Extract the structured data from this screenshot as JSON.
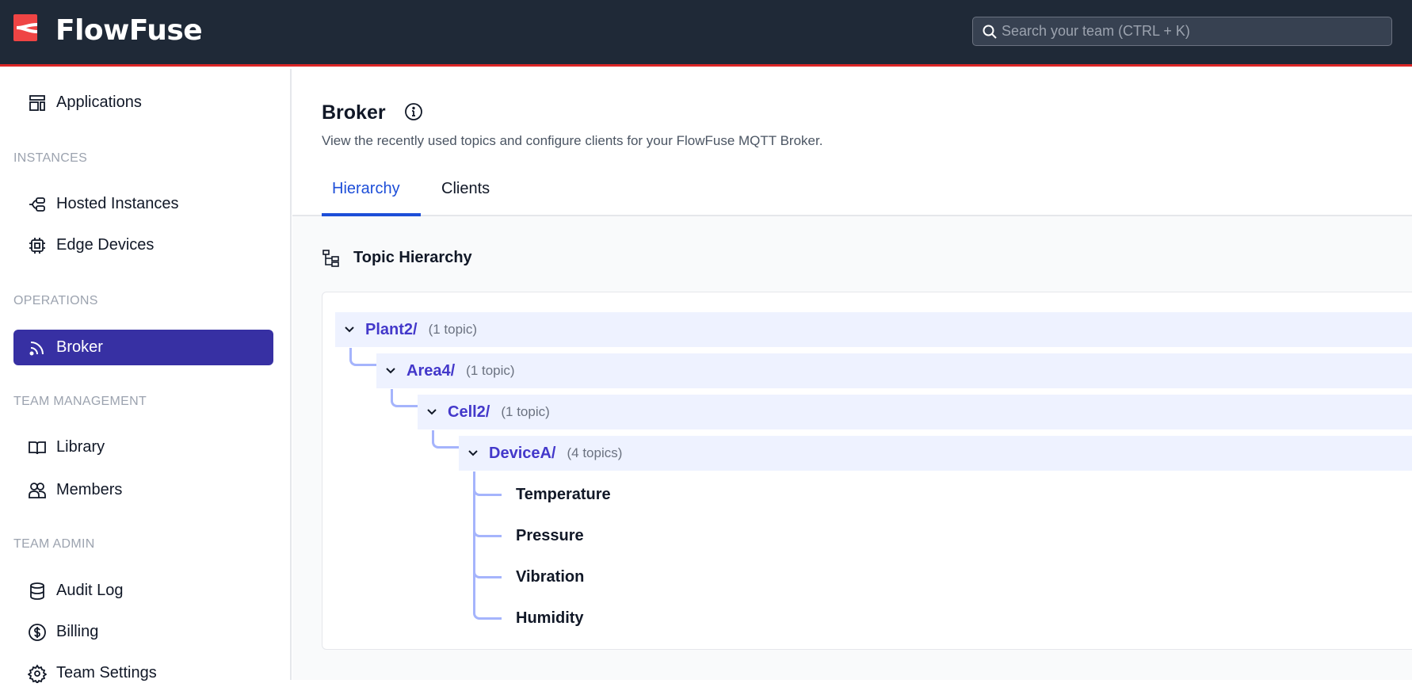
{
  "header": {
    "brand": "FlowFuse",
    "search_placeholder": "Search your team (CTRL + K)",
    "brand_color": "#ef4444",
    "accent": "#dc2626"
  },
  "sidebar": {
    "applications": "Applications",
    "sections": [
      "INSTANCES",
      "OPERATIONS",
      "TEAM MANAGEMENT",
      "TEAM ADMIN"
    ],
    "items": {
      "hosted": "Hosted Instances",
      "edge": "Edge Devices",
      "broker": "Broker",
      "library": "Library",
      "members": "Members",
      "audit": "Audit Log",
      "billing": "Billing",
      "settings": "Team Settings"
    },
    "active": "Broker",
    "active_color": "#3730a3"
  },
  "page": {
    "title": "Broker",
    "subtitle": "View the recently used topics and configure clients for your FlowFuse MQTT Broker.",
    "tabs": [
      {
        "label": "Hierarchy",
        "active": true
      },
      {
        "label": "Clients",
        "active": false
      }
    ]
  },
  "hierarchy": {
    "title": "Topic Hierarchy",
    "nodes": [
      {
        "name": "Plant2/",
        "count": "(1 topic)"
      },
      {
        "name": "Area4/",
        "count": "(1 topic)"
      },
      {
        "name": "Cell2/",
        "count": "(1 topic)"
      },
      {
        "name": "DeviceA/",
        "count": "(4 topics)"
      }
    ],
    "leaves": [
      "Temperature",
      "Pressure",
      "Vibration",
      "Humidity"
    ]
  }
}
